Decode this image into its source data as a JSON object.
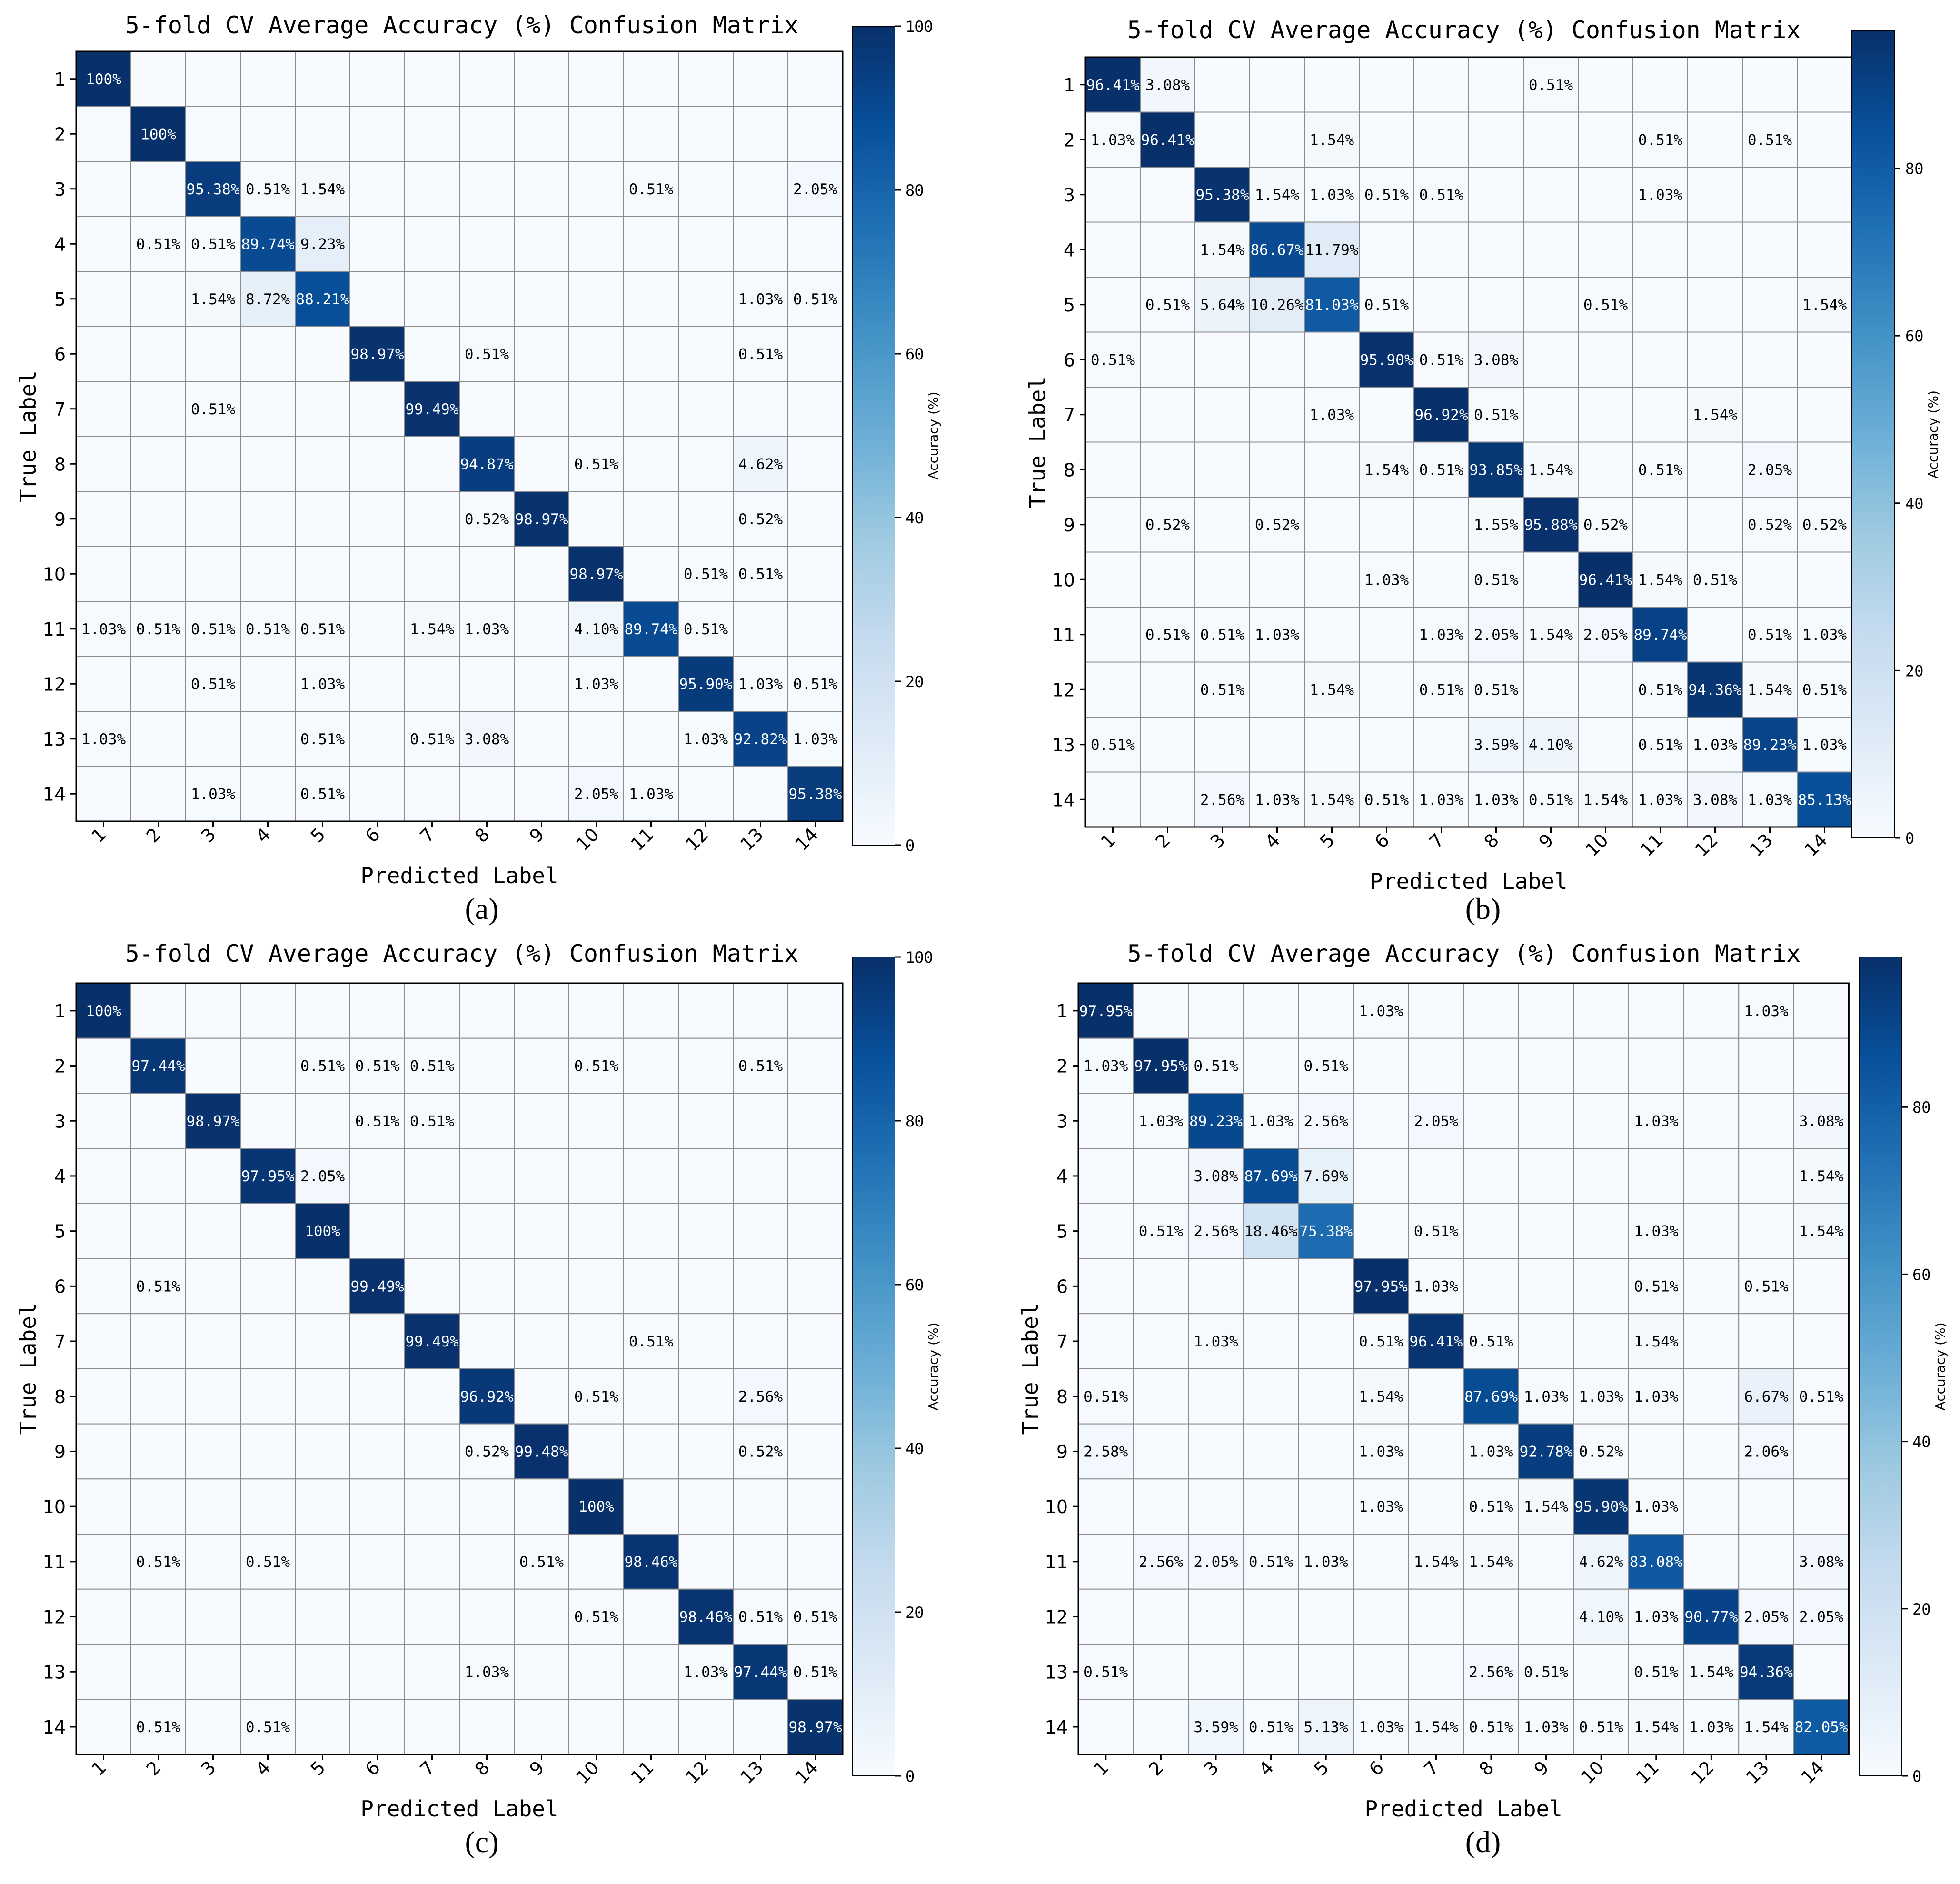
{
  "colorbar": {
    "label": "Accuracy (%)",
    "ticks_100": [
      "0",
      "20",
      "40",
      "60",
      "80",
      "100"
    ],
    "ticks_auto": [
      "0",
      "20",
      "40",
      "60",
      "80"
    ]
  },
  "chart_data": [
    {
      "type": "heatmap",
      "panel": "(a)",
      "title": "5-fold CV Average Accuracy (%) Confusion Matrix",
      "xlabel": "Predicted Label",
      "ylabel": "True Label",
      "categories": [
        "1",
        "2",
        "3",
        "4",
        "5",
        "6",
        "7",
        "8",
        "9",
        "10",
        "11",
        "12",
        "13",
        "14"
      ],
      "colorbar_max": 100,
      "colorbar_ticks": [
        "0",
        "20",
        "40",
        "60",
        "80",
        "100"
      ],
      "values": [
        [
          100,
          0,
          0,
          0,
          0,
          0,
          0,
          0,
          0,
          0,
          0,
          0,
          0,
          0
        ],
        [
          0,
          100,
          0,
          0,
          0,
          0,
          0,
          0,
          0,
          0,
          0,
          0,
          0,
          0
        ],
        [
          0,
          0,
          95.38,
          0.51,
          1.54,
          0,
          0,
          0,
          0,
          0,
          0.51,
          0,
          0,
          2.05
        ],
        [
          0,
          0.51,
          0.51,
          89.74,
          9.23,
          0,
          0,
          0,
          0,
          0,
          0,
          0,
          0,
          0
        ],
        [
          0,
          0,
          1.54,
          8.72,
          88.21,
          0,
          0,
          0,
          0,
          0,
          0,
          0,
          1.03,
          0.51
        ],
        [
          0,
          0,
          0,
          0,
          0,
          98.97,
          0,
          0.51,
          0,
          0,
          0,
          0,
          0.51,
          0
        ],
        [
          0,
          0,
          0.51,
          0,
          0,
          0,
          99.49,
          0,
          0,
          0,
          0,
          0,
          0,
          0
        ],
        [
          0,
          0,
          0,
          0,
          0,
          0,
          0,
          94.87,
          0,
          0.51,
          0,
          0,
          4.62,
          0
        ],
        [
          0,
          0,
          0,
          0,
          0,
          0,
          0,
          0.52,
          98.97,
          0,
          0,
          0,
          0.52,
          0
        ],
        [
          0,
          0,
          0,
          0,
          0,
          0,
          0,
          0,
          0,
          98.97,
          0,
          0.51,
          0.51,
          0
        ],
        [
          1.03,
          0.51,
          0.51,
          0.51,
          0.51,
          0,
          1.54,
          1.03,
          0,
          4.1,
          89.74,
          0.51,
          0,
          0
        ],
        [
          0,
          0,
          0.51,
          0,
          1.03,
          0,
          0,
          0,
          0,
          1.03,
          0,
          95.9,
          1.03,
          0.51
        ],
        [
          1.03,
          0,
          0,
          0,
          0.51,
          0,
          0.51,
          3.08,
          0,
          0,
          0,
          1.03,
          92.82,
          1.03
        ],
        [
          0,
          0,
          1.03,
          0,
          0.51,
          0,
          0,
          0,
          0,
          2.05,
          1.03,
          0,
          0,
          95.38
        ]
      ]
    },
    {
      "type": "heatmap",
      "panel": "(b)",
      "title": "5-fold CV Average Accuracy (%) Confusion Matrix",
      "xlabel": "Predicted Label",
      "ylabel": "True Label",
      "categories": [
        "1",
        "2",
        "3",
        "4",
        "5",
        "6",
        "7",
        "8",
        "9",
        "10",
        "11",
        "12",
        "13",
        "14"
      ],
      "colorbar_max": 96.41,
      "colorbar_ticks": [
        "0",
        "20",
        "40",
        "60",
        "80"
      ],
      "values": [
        [
          96.41,
          3.08,
          0,
          0,
          0,
          0,
          0,
          0,
          0.51,
          0,
          0,
          0,
          0,
          0
        ],
        [
          1.03,
          96.41,
          0,
          0,
          1.54,
          0,
          0,
          0,
          0,
          0,
          0.51,
          0,
          0.51,
          0
        ],
        [
          0,
          0,
          95.38,
          1.54,
          1.03,
          0.51,
          0.51,
          0,
          0,
          0,
          1.03,
          0,
          0,
          0
        ],
        [
          0,
          0,
          1.54,
          86.67,
          11.79,
          0,
          0,
          0,
          0,
          0,
          0,
          0,
          0,
          0
        ],
        [
          0,
          0.51,
          5.64,
          10.26,
          81.03,
          0.51,
          0,
          0,
          0,
          0.51,
          0,
          0,
          0,
          1.54
        ],
        [
          0.51,
          0,
          0,
          0,
          0,
          95.9,
          0.51,
          3.08,
          0,
          0,
          0,
          0,
          0,
          0
        ],
        [
          0,
          0,
          0,
          0,
          1.03,
          0,
          96.92,
          0.51,
          0,
          0,
          0,
          1.54,
          0,
          0
        ],
        [
          0,
          0,
          0,
          0,
          0,
          1.54,
          0.51,
          93.85,
          1.54,
          0,
          0.51,
          0,
          2.05,
          0
        ],
        [
          0,
          0.52,
          0,
          0.52,
          0,
          0,
          0,
          1.55,
          95.88,
          0.52,
          0,
          0,
          0.52,
          0.52
        ],
        [
          0,
          0,
          0,
          0,
          0,
          1.03,
          0,
          0.51,
          0,
          96.41,
          1.54,
          0.51,
          0,
          0
        ],
        [
          0,
          0.51,
          0.51,
          1.03,
          0,
          0,
          1.03,
          2.05,
          1.54,
          2.05,
          89.74,
          0,
          0.51,
          1.03
        ],
        [
          0,
          0,
          0.51,
          0,
          1.54,
          0,
          0.51,
          0.51,
          0,
          0,
          0.51,
          94.36,
          1.54,
          0.51
        ],
        [
          0.51,
          0,
          0,
          0,
          0,
          0,
          0,
          3.59,
          4.1,
          0,
          0.51,
          1.03,
          89.23,
          1.03
        ],
        [
          0,
          0,
          2.56,
          1.03,
          1.54,
          0.51,
          1.03,
          1.03,
          0.51,
          1.54,
          1.03,
          3.08,
          1.03,
          85.13
        ]
      ]
    },
    {
      "type": "heatmap",
      "panel": "(c)",
      "title": "5-fold CV Average Accuracy (%) Confusion Matrix",
      "xlabel": "Predicted Label",
      "ylabel": "True Label",
      "categories": [
        "1",
        "2",
        "3",
        "4",
        "5",
        "6",
        "7",
        "8",
        "9",
        "10",
        "11",
        "12",
        "13",
        "14"
      ],
      "colorbar_max": 100,
      "colorbar_ticks": [
        "0",
        "20",
        "40",
        "60",
        "80",
        "100"
      ],
      "values": [
        [
          100,
          0,
          0,
          0,
          0,
          0,
          0,
          0,
          0,
          0,
          0,
          0,
          0,
          0
        ],
        [
          0,
          97.44,
          0,
          0,
          0.51,
          0.51,
          0.51,
          0,
          0,
          0.51,
          0,
          0,
          0.51,
          0
        ],
        [
          0,
          0,
          98.97,
          0,
          0,
          0.51,
          0.51,
          0,
          0,
          0,
          0,
          0,
          0,
          0
        ],
        [
          0,
          0,
          0,
          97.95,
          2.05,
          0,
          0,
          0,
          0,
          0,
          0,
          0,
          0,
          0
        ],
        [
          0,
          0,
          0,
          0,
          100,
          0,
          0,
          0,
          0,
          0,
          0,
          0,
          0,
          0
        ],
        [
          0,
          0.51,
          0,
          0,
          0,
          99.49,
          0,
          0,
          0,
          0,
          0,
          0,
          0,
          0
        ],
        [
          0,
          0,
          0,
          0,
          0,
          0,
          99.49,
          0,
          0,
          0,
          0.51,
          0,
          0,
          0
        ],
        [
          0,
          0,
          0,
          0,
          0,
          0,
          0,
          96.92,
          0,
          0.51,
          0,
          0,
          2.56,
          0
        ],
        [
          0,
          0,
          0,
          0,
          0,
          0,
          0,
          0.52,
          99.48,
          0,
          0,
          0,
          0.52,
          0
        ],
        [
          0,
          0,
          0,
          0,
          0,
          0,
          0,
          0,
          0,
          100,
          0,
          0,
          0,
          0
        ],
        [
          0,
          0.51,
          0,
          0.51,
          0,
          0,
          0,
          0,
          0.51,
          0,
          98.46,
          0,
          0,
          0
        ],
        [
          0,
          0,
          0,
          0,
          0,
          0,
          0,
          0,
          0,
          0.51,
          0,
          98.46,
          0.51,
          0.51
        ],
        [
          0,
          0,
          0,
          0,
          0,
          0,
          0,
          1.03,
          0,
          0,
          0,
          1.03,
          97.44,
          0.51
        ],
        [
          0,
          0.51,
          0,
          0.51,
          0,
          0,
          0,
          0,
          0,
          0,
          0,
          0,
          0,
          98.97
        ]
      ]
    },
    {
      "type": "heatmap",
      "panel": "(d)",
      "title": "5-fold CV Average Accuracy (%) Confusion Matrix",
      "xlabel": "Predicted Label",
      "ylabel": "True Label",
      "categories": [
        "1",
        "2",
        "3",
        "4",
        "5",
        "6",
        "7",
        "8",
        "9",
        "10",
        "11",
        "12",
        "13",
        "14"
      ],
      "colorbar_max": 97.95,
      "colorbar_ticks": [
        "0",
        "20",
        "40",
        "60",
        "80"
      ],
      "values": [
        [
          97.95,
          0,
          0,
          0,
          0,
          1.03,
          0,
          0,
          0,
          0,
          0,
          0,
          1.03,
          0
        ],
        [
          1.03,
          97.95,
          0.51,
          0,
          0.51,
          0,
          0,
          0,
          0,
          0,
          0,
          0,
          0,
          0
        ],
        [
          0,
          1.03,
          89.23,
          1.03,
          2.56,
          0,
          2.05,
          0,
          0,
          0,
          1.03,
          0,
          0,
          3.08
        ],
        [
          0,
          0,
          3.08,
          87.69,
          7.69,
          0,
          0,
          0,
          0,
          0,
          0,
          0,
          0,
          1.54
        ],
        [
          0,
          0.51,
          2.56,
          18.46,
          75.38,
          0,
          0.51,
          0,
          0,
          0,
          1.03,
          0,
          0,
          1.54
        ],
        [
          0,
          0,
          0,
          0,
          0,
          97.95,
          1.03,
          0,
          0,
          0,
          0.51,
          0,
          0.51,
          0
        ],
        [
          0,
          0,
          1.03,
          0,
          0,
          0.51,
          96.41,
          0.51,
          0,
          0,
          1.54,
          0,
          0,
          0
        ],
        [
          0.51,
          0,
          0,
          0,
          0,
          1.54,
          0,
          87.69,
          1.03,
          1.03,
          1.03,
          0,
          6.67,
          0.51
        ],
        [
          2.58,
          0,
          0,
          0,
          0,
          1.03,
          0,
          1.03,
          92.78,
          0.52,
          0,
          0,
          2.06,
          0
        ],
        [
          0,
          0,
          0,
          0,
          0,
          1.03,
          0,
          0.51,
          1.54,
          95.9,
          1.03,
          0,
          0,
          0
        ],
        [
          0,
          2.56,
          2.05,
          0.51,
          1.03,
          0,
          1.54,
          1.54,
          0,
          4.62,
          83.08,
          0,
          0,
          3.08
        ],
        [
          0,
          0,
          0,
          0,
          0,
          0,
          0,
          0,
          0,
          4.1,
          1.03,
          90.77,
          2.05,
          2.05
        ],
        [
          0.51,
          0,
          0,
          0,
          0,
          0,
          0,
          2.56,
          0.51,
          0,
          0.51,
          1.54,
          94.36,
          0
        ],
        [
          0,
          0,
          3.59,
          0.51,
          5.13,
          1.03,
          1.54,
          0.51,
          1.03,
          0.51,
          1.54,
          1.03,
          1.54,
          82.05
        ]
      ]
    }
  ]
}
